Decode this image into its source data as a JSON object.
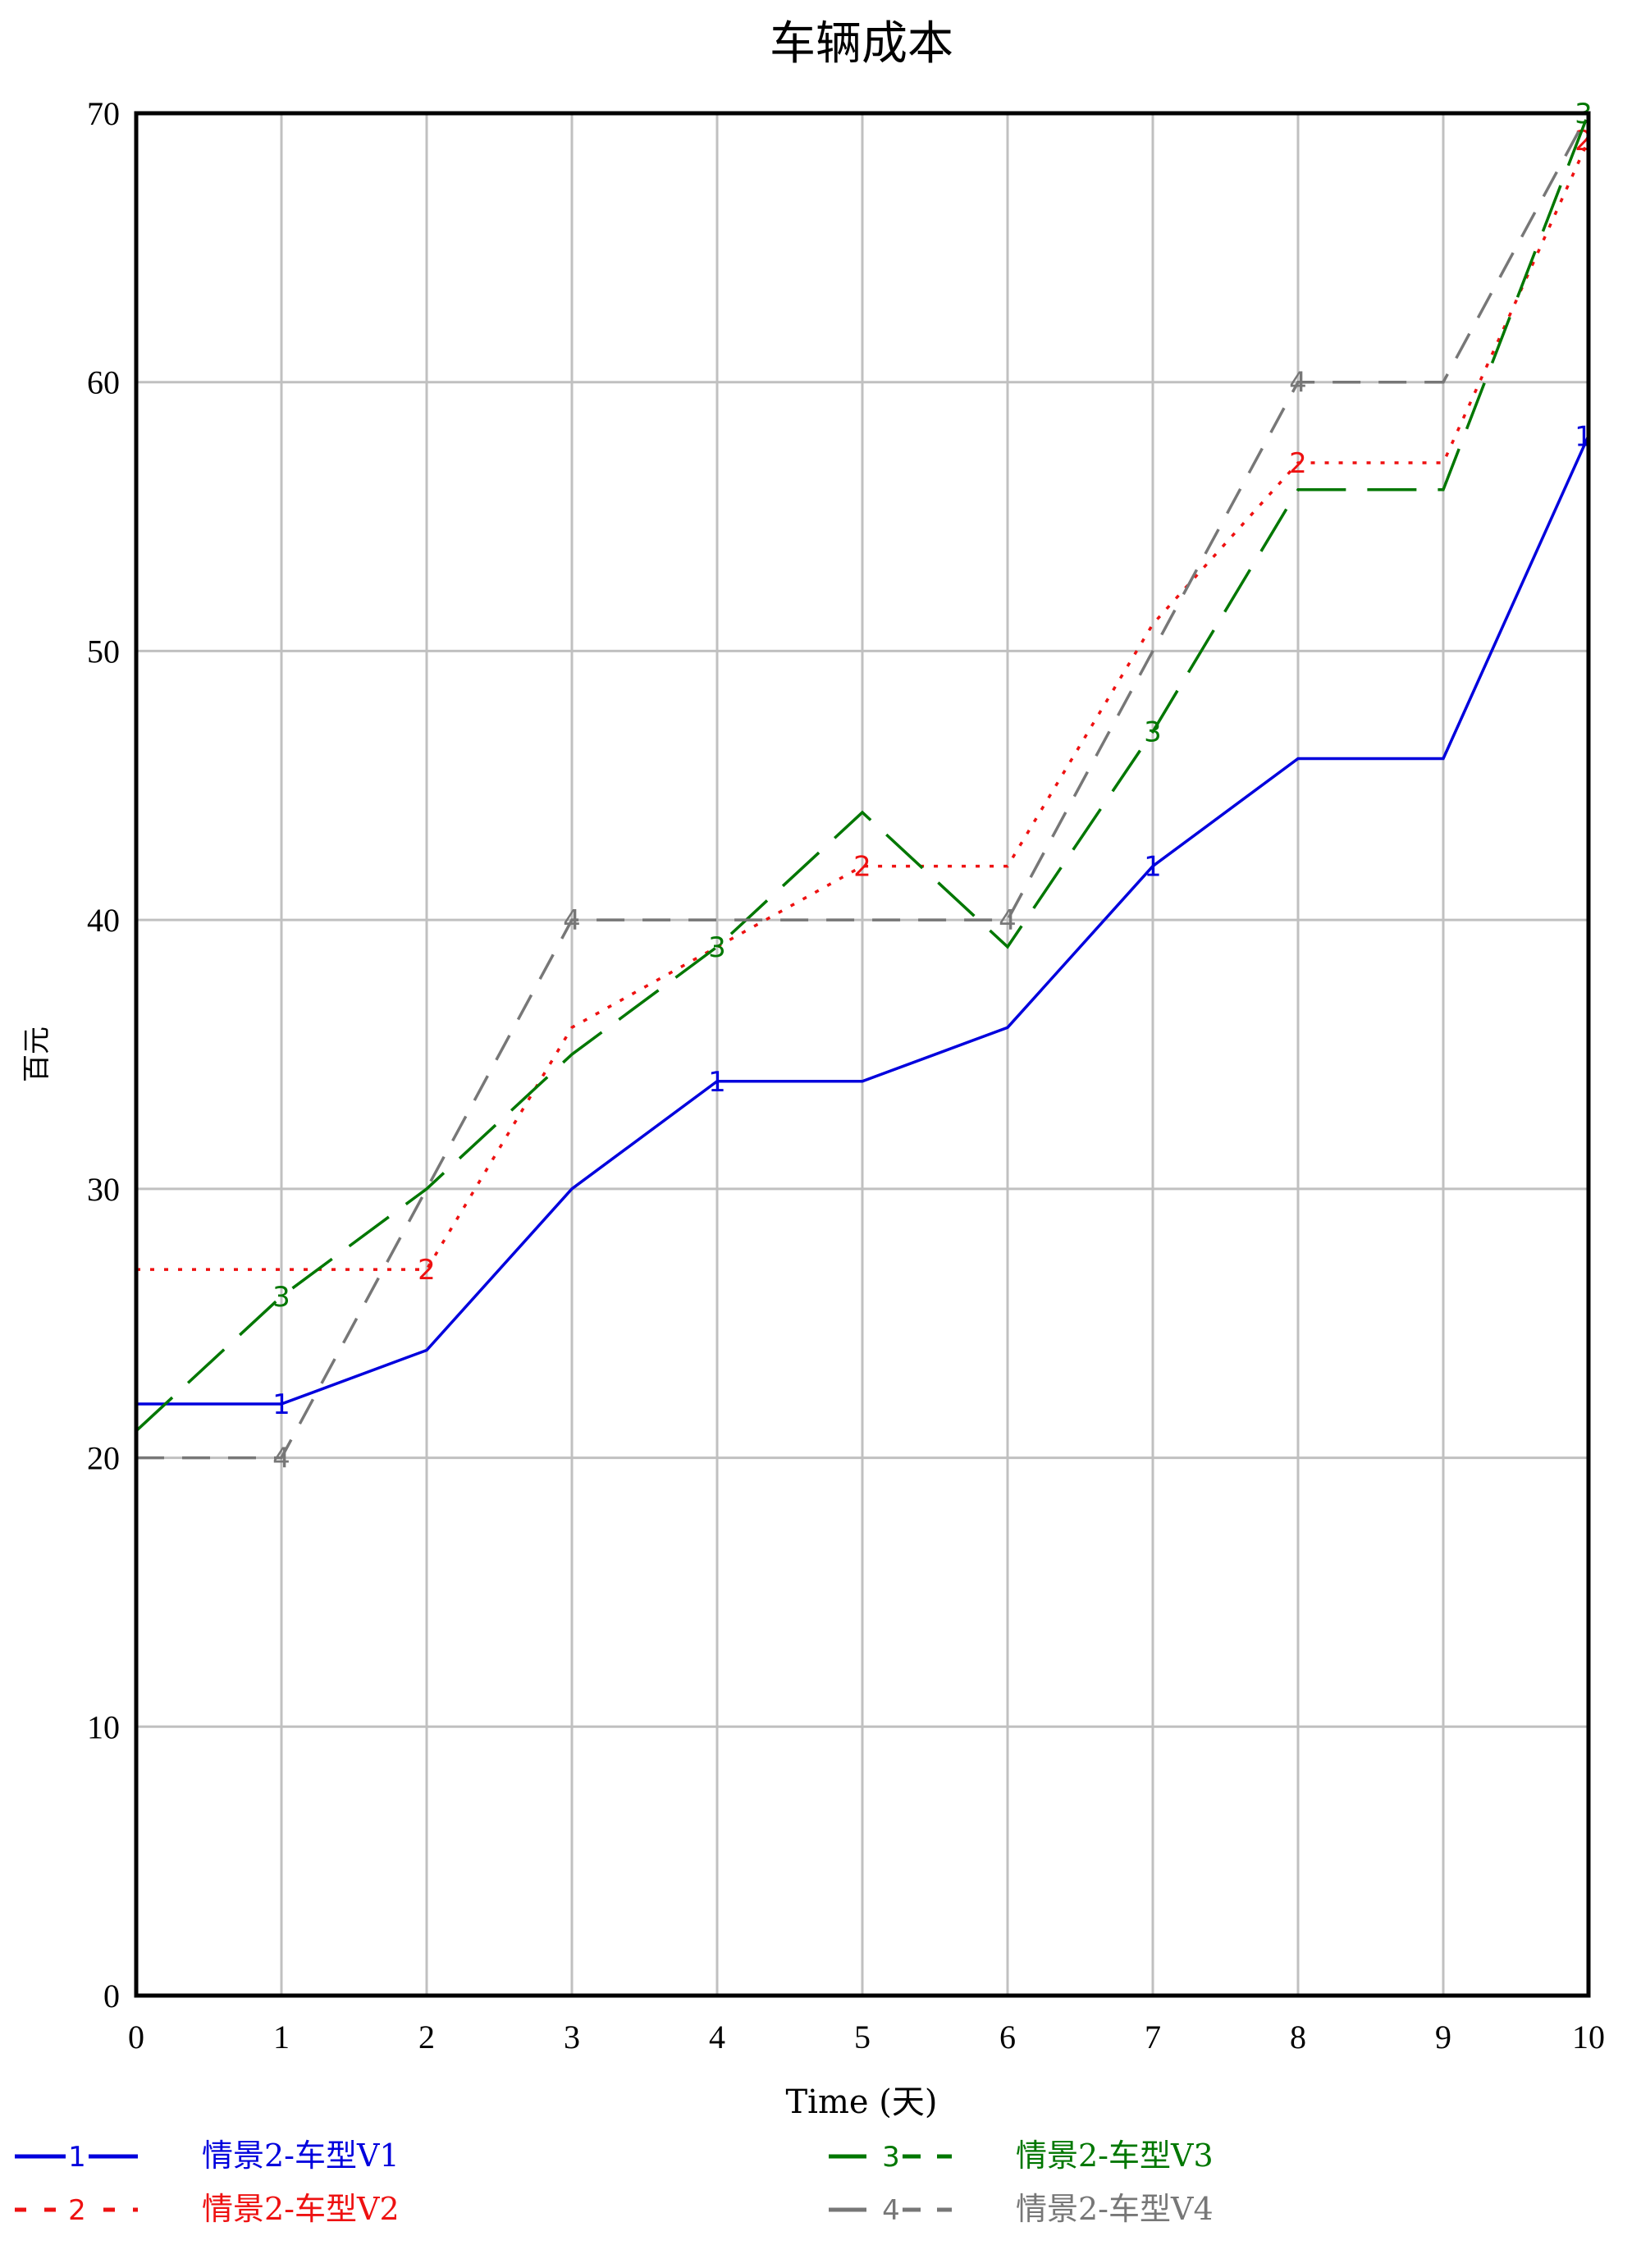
{
  "chart_data": {
    "type": "line",
    "title": "车辆成本",
    "xlabel": "Time (天)",
    "ylabel": "百元",
    "xlim": [
      0,
      10
    ],
    "ylim": [
      0,
      70
    ],
    "x_ticks": [
      "0",
      "1",
      "2",
      "3",
      "4",
      "5",
      "6",
      "7",
      "8",
      "9",
      "10"
    ],
    "y_ticks": [
      "0",
      "10",
      "20",
      "30",
      "40",
      "50",
      "60",
      "70"
    ],
    "grid": true,
    "legend_position": "bottom",
    "x": [
      0,
      1,
      2,
      3,
      4,
      5,
      6,
      7,
      8,
      9,
      10
    ],
    "series": [
      {
        "name": "情景2-车型V1",
        "marker": "1",
        "color": "#0000dd",
        "dash": "solid",
        "values": [
          22,
          22,
          24,
          30,
          34,
          34,
          36,
          42,
          46,
          46,
          58
        ]
      },
      {
        "name": "情景2-车型V2",
        "marker": "2",
        "color": "#ee1111",
        "dash": "dotted",
        "values": [
          27,
          27,
          27,
          36,
          39,
          42,
          42,
          51,
          57,
          57,
          69
        ]
      },
      {
        "name": "情景2-车型V3",
        "marker": "3",
        "color": "#007700",
        "dash": "longdash",
        "values": [
          21,
          26,
          30,
          35,
          39,
          44,
          39,
          47,
          56,
          56,
          70
        ]
      },
      {
        "name": "情景2-车型V4",
        "marker": "4",
        "color": "#777777",
        "dash": "dashed",
        "values": [
          20,
          20,
          30,
          40,
          40,
          40,
          40,
          50,
          60,
          60,
          70
        ]
      }
    ]
  }
}
